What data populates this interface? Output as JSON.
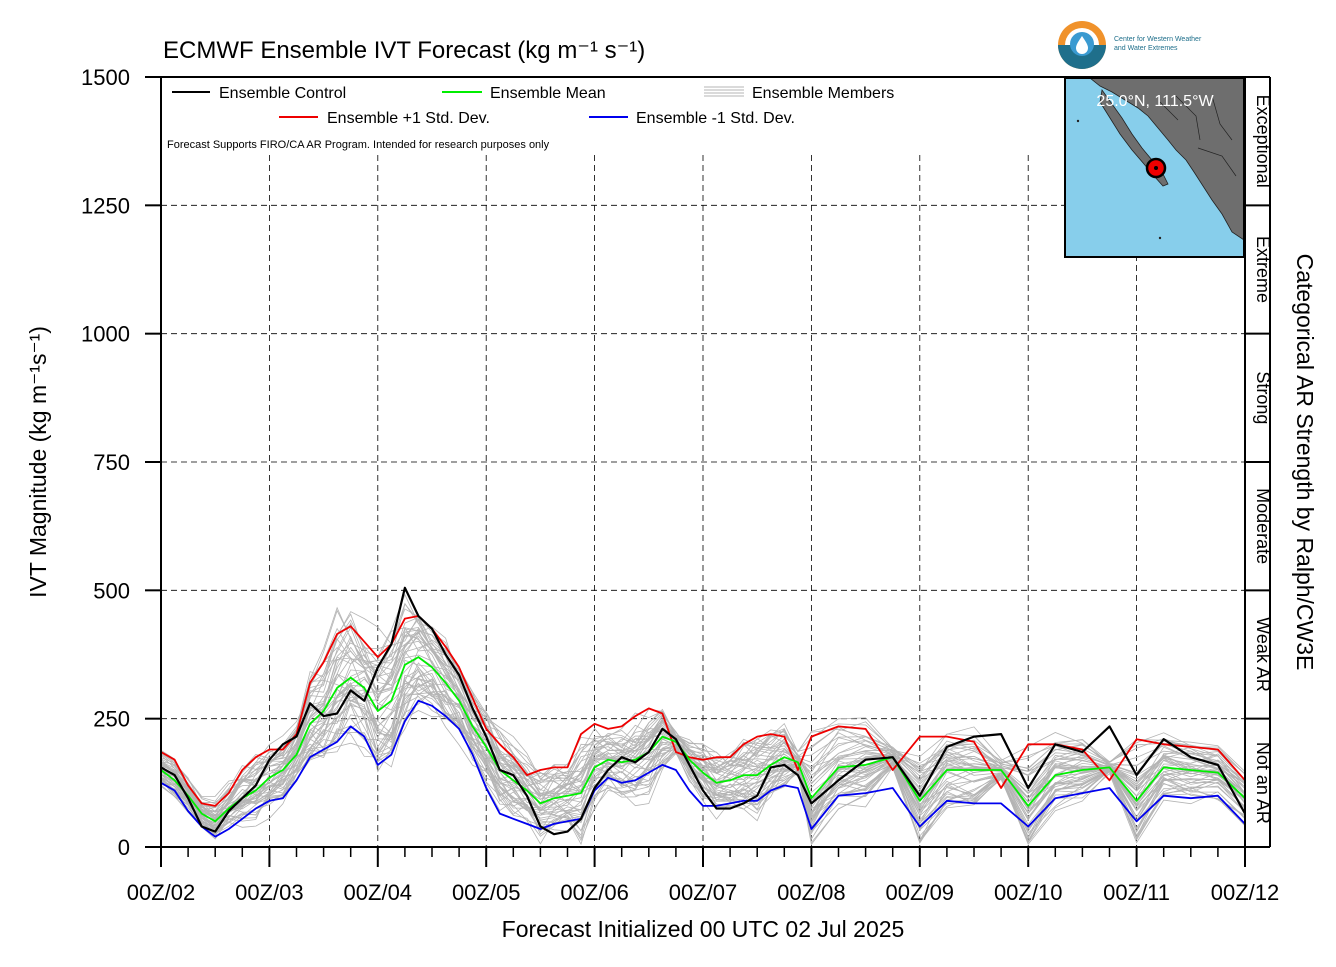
{
  "chart_data": {
    "type": "line",
    "title": "ECMWF Ensemble IVT Forecast (kg m⁻¹ s⁻¹)",
    "xlabel": "Forecast Initialized 00 UTC 02 Jul 2025",
    "ylabel": "IVT Magnitude (kg m⁻¹s⁻¹)",
    "right_label": "Categorical AR Strength by Ralph/CW3E",
    "note": "Forecast Supports FIRO/CA AR Program. Intended for research purposes only",
    "ylim": [
      0,
      1500
    ],
    "xlim": [
      0,
      240
    ],
    "yticks": [
      0,
      250,
      500,
      750,
      1000,
      1250,
      1500
    ],
    "xtick_hours": [
      0,
      24,
      48,
      72,
      96,
      120,
      144,
      168,
      192,
      216,
      240
    ],
    "xtick_labels": [
      "00Z/02",
      "00Z/03",
      "00Z/04",
      "00Z/05",
      "00Z/06",
      "00Z/07",
      "00Z/08",
      "00Z/09",
      "00Z/10",
      "00Z/11",
      "00Z/12"
    ],
    "grid": true,
    "legend_position": "top-left",
    "categories": [
      {
        "label": "Not an AR",
        "from": 0,
        "to": 250
      },
      {
        "label": "Weak AR",
        "from": 250,
        "to": 500
      },
      {
        "label": "Moderate",
        "from": 500,
        "to": 750
      },
      {
        "label": "Strong",
        "from": 750,
        "to": 1000
      },
      {
        "label": "Extreme",
        "from": 1000,
        "to": 1250
      },
      {
        "label": "Exceptional",
        "from": 1250,
        "to": 1500
      }
    ],
    "series": [
      {
        "name": "Ensemble Control",
        "color": "#000000",
        "x": [
          0,
          3,
          6,
          9,
          12,
          15,
          18,
          21,
          24,
          27,
          30,
          33,
          36,
          39,
          42,
          45,
          48,
          51,
          54,
          57,
          60,
          63,
          66,
          69,
          72,
          75,
          78,
          81,
          84,
          87,
          90,
          93,
          96,
          99,
          102,
          105,
          108,
          111,
          114,
          117,
          120,
          123,
          126,
          129,
          132,
          135,
          138,
          141,
          144,
          150,
          156,
          162,
          168,
          174,
          180,
          186,
          192,
          198,
          204,
          210,
          216,
          222,
          228,
          234,
          240
        ],
        "y": [
          155,
          140,
          95,
          40,
          30,
          70,
          95,
          120,
          170,
          200,
          215,
          280,
          255,
          260,
          305,
          285,
          350,
          395,
          505,
          450,
          425,
          375,
          335,
          270,
          215,
          150,
          140,
          100,
          40,
          25,
          30,
          55,
          115,
          150,
          175,
          165,
          185,
          230,
          210,
          160,
          110,
          75,
          75,
          85,
          100,
          155,
          160,
          140,
          85,
          130,
          170,
          175,
          100,
          195,
          215,
          220,
          115,
          200,
          185,
          235,
          140,
          210,
          175,
          160,
          65
        ]
      },
      {
        "name": "Ensemble Mean",
        "color": "#00ee00",
        "x": [
          0,
          3,
          6,
          9,
          12,
          15,
          18,
          21,
          24,
          27,
          30,
          33,
          36,
          39,
          42,
          45,
          48,
          51,
          54,
          57,
          60,
          63,
          66,
          69,
          72,
          75,
          78,
          81,
          84,
          87,
          90,
          93,
          96,
          99,
          102,
          105,
          108,
          111,
          114,
          117,
          120,
          123,
          126,
          129,
          132,
          135,
          138,
          141,
          144,
          150,
          156,
          162,
          168,
          174,
          180,
          186,
          192,
          198,
          204,
          210,
          216,
          222,
          228,
          234,
          240
        ],
        "y": [
          150,
          130,
          100,
          65,
          50,
          75,
          95,
          110,
          135,
          150,
          180,
          240,
          265,
          310,
          330,
          310,
          265,
          285,
          355,
          370,
          350,
          320,
          285,
          235,
          195,
          150,
          130,
          110,
          85,
          95,
          100,
          105,
          155,
          170,
          165,
          170,
          185,
          215,
          205,
          170,
          145,
          125,
          130,
          140,
          140,
          160,
          175,
          165,
          95,
          155,
          160,
          175,
          90,
          150,
          150,
          150,
          80,
          140,
          150,
          155,
          90,
          155,
          150,
          145,
          95
        ]
      },
      {
        "name": "Ensemble +1 Std. Dev.",
        "color": "#ee0000",
        "x": [
          0,
          3,
          6,
          9,
          12,
          15,
          18,
          21,
          24,
          27,
          30,
          33,
          36,
          39,
          42,
          45,
          48,
          51,
          54,
          57,
          60,
          63,
          66,
          69,
          72,
          75,
          78,
          81,
          84,
          87,
          90,
          93,
          96,
          99,
          102,
          105,
          108,
          111,
          114,
          117,
          120,
          123,
          126,
          129,
          132,
          135,
          138,
          141,
          144,
          150,
          156,
          162,
          168,
          174,
          180,
          186,
          192,
          198,
          204,
          210,
          216,
          222,
          228,
          234,
          240
        ],
        "y": [
          185,
          170,
          120,
          85,
          80,
          105,
          150,
          175,
          190,
          190,
          220,
          320,
          360,
          415,
          430,
          400,
          370,
          395,
          445,
          450,
          425,
          390,
          350,
          290,
          230,
          200,
          175,
          140,
          150,
          155,
          155,
          220,
          240,
          230,
          235,
          255,
          270,
          260,
          185,
          175,
          170,
          175,
          175,
          200,
          215,
          220,
          215,
          150,
          215,
          235,
          230,
          150,
          215,
          215,
          205,
          115,
          200,
          200,
          190,
          130,
          210,
          200,
          195,
          190,
          130
        ]
      },
      {
        "name": "Ensemble -1 Std. Dev.",
        "color": "#0000ee",
        "x": [
          0,
          3,
          6,
          9,
          12,
          15,
          18,
          21,
          24,
          27,
          30,
          33,
          36,
          39,
          42,
          45,
          48,
          51,
          54,
          57,
          60,
          63,
          66,
          69,
          72,
          75,
          78,
          81,
          84,
          87,
          90,
          93,
          96,
          99,
          102,
          105,
          108,
          111,
          114,
          117,
          120,
          123,
          126,
          129,
          132,
          135,
          138,
          141,
          144,
          150,
          156,
          162,
          168,
          174,
          180,
          186,
          192,
          198,
          204,
          210,
          216,
          222,
          228,
          234,
          240
        ],
        "y": [
          125,
          110,
          70,
          40,
          20,
          35,
          55,
          75,
          90,
          95,
          130,
          175,
          190,
          205,
          235,
          215,
          160,
          180,
          245,
          285,
          275,
          255,
          230,
          180,
          115,
          65,
          55,
          45,
          35,
          45,
          50,
          55,
          110,
          135,
          125,
          130,
          145,
          160,
          150,
          110,
          80,
          80,
          85,
          90,
          90,
          110,
          120,
          115,
          35,
          100,
          105,
          115,
          40,
          90,
          85,
          85,
          40,
          95,
          105,
          115,
          50,
          100,
          95,
          100,
          45
        ]
      }
    ],
    "members_label": "Ensemble Members",
    "member_color": "#b4b4b4"
  },
  "logo": {
    "line1": "Center for Western Weather",
    "line2": "and Water Extremes"
  },
  "inset": {
    "label": "25.0°N, 111.5°W",
    "land": "#6e6e6e",
    "water": "#87ceeb",
    "marker": "#ee0000"
  }
}
